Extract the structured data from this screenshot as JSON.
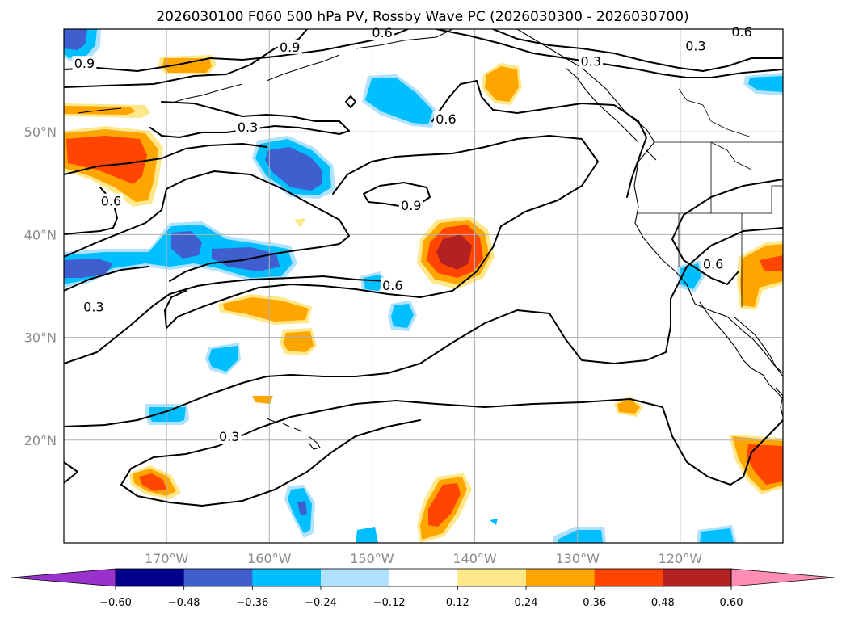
{
  "title": "2026030100 F060 500 hPa PV, Rossby Wave PC (2026030300 - 2026030700)",
  "map": {
    "projection": "PlateCarree",
    "lon_range": [
      -180,
      -110
    ],
    "lat_range": [
      10,
      60
    ],
    "gridlines": true,
    "lon_ticks": [
      {
        "lon": -170,
        "label": "170°W"
      },
      {
        "lon": -160,
        "label": "160°W"
      },
      {
        "lon": -150,
        "label": "150°W"
      },
      {
        "lon": -140,
        "label": "140°W"
      },
      {
        "lon": -130,
        "label": "130°W"
      },
      {
        "lon": -120,
        "label": "120°W"
      }
    ],
    "lat_ticks": [
      {
        "lat": 50,
        "label": "50°N"
      },
      {
        "lat": 40,
        "label": "40°N"
      },
      {
        "lat": 30,
        "label": "30°N"
      },
      {
        "lat": 20,
        "label": "20°N"
      }
    ],
    "contour_labels": [
      {
        "text": "0.9",
        "lon": -178.0,
        "lat": 56.6
      },
      {
        "text": "0.9",
        "lon": -158.0,
        "lat": 58.2
      },
      {
        "text": "0.6",
        "lon": -149.0,
        "lat": 59.6
      },
      {
        "text": "0.3",
        "lon": -128.7,
        "lat": 56.8
      },
      {
        "text": "0.3",
        "lon": -118.5,
        "lat": 58.3
      },
      {
        "text": "0.6",
        "lon": -114.0,
        "lat": 59.7
      },
      {
        "text": "0.6",
        "lon": -142.8,
        "lat": 51.2
      },
      {
        "text": "0.3",
        "lon": -162.1,
        "lat": 50.4
      },
      {
        "text": "0.9",
        "lon": -146.2,
        "lat": 42.8
      },
      {
        "text": "0.6",
        "lon": -175.4,
        "lat": 43.2
      },
      {
        "text": "0.6",
        "lon": -148.0,
        "lat": 35.0
      },
      {
        "text": "0.3",
        "lon": -177.1,
        "lat": 32.9
      },
      {
        "text": "0.3",
        "lon": -163.9,
        "lat": 20.3
      },
      {
        "text": "0.6",
        "lon": -116.8,
        "lat": 37.1
      }
    ]
  },
  "colorbar": {
    "extend": "both",
    "levels": [
      -0.6,
      -0.48,
      -0.36,
      -0.24,
      -0.12,
      0.12,
      0.24,
      0.36,
      0.48,
      0.6
    ],
    "tick_labels": [
      "−0.60",
      "−0.48",
      "−0.36",
      "−0.24",
      "−0.12",
      "0.12",
      "0.24",
      "0.36",
      "0.48",
      "0.60"
    ],
    "colors": [
      "#9932cc",
      "#00008b",
      "#3f5fcf",
      "#00bfff",
      "#b0e2ff",
      "#ffffff",
      "#ffe88a",
      "#ffa500",
      "#ff4500",
      "#b22222",
      "#ff8cb5"
    ]
  }
}
